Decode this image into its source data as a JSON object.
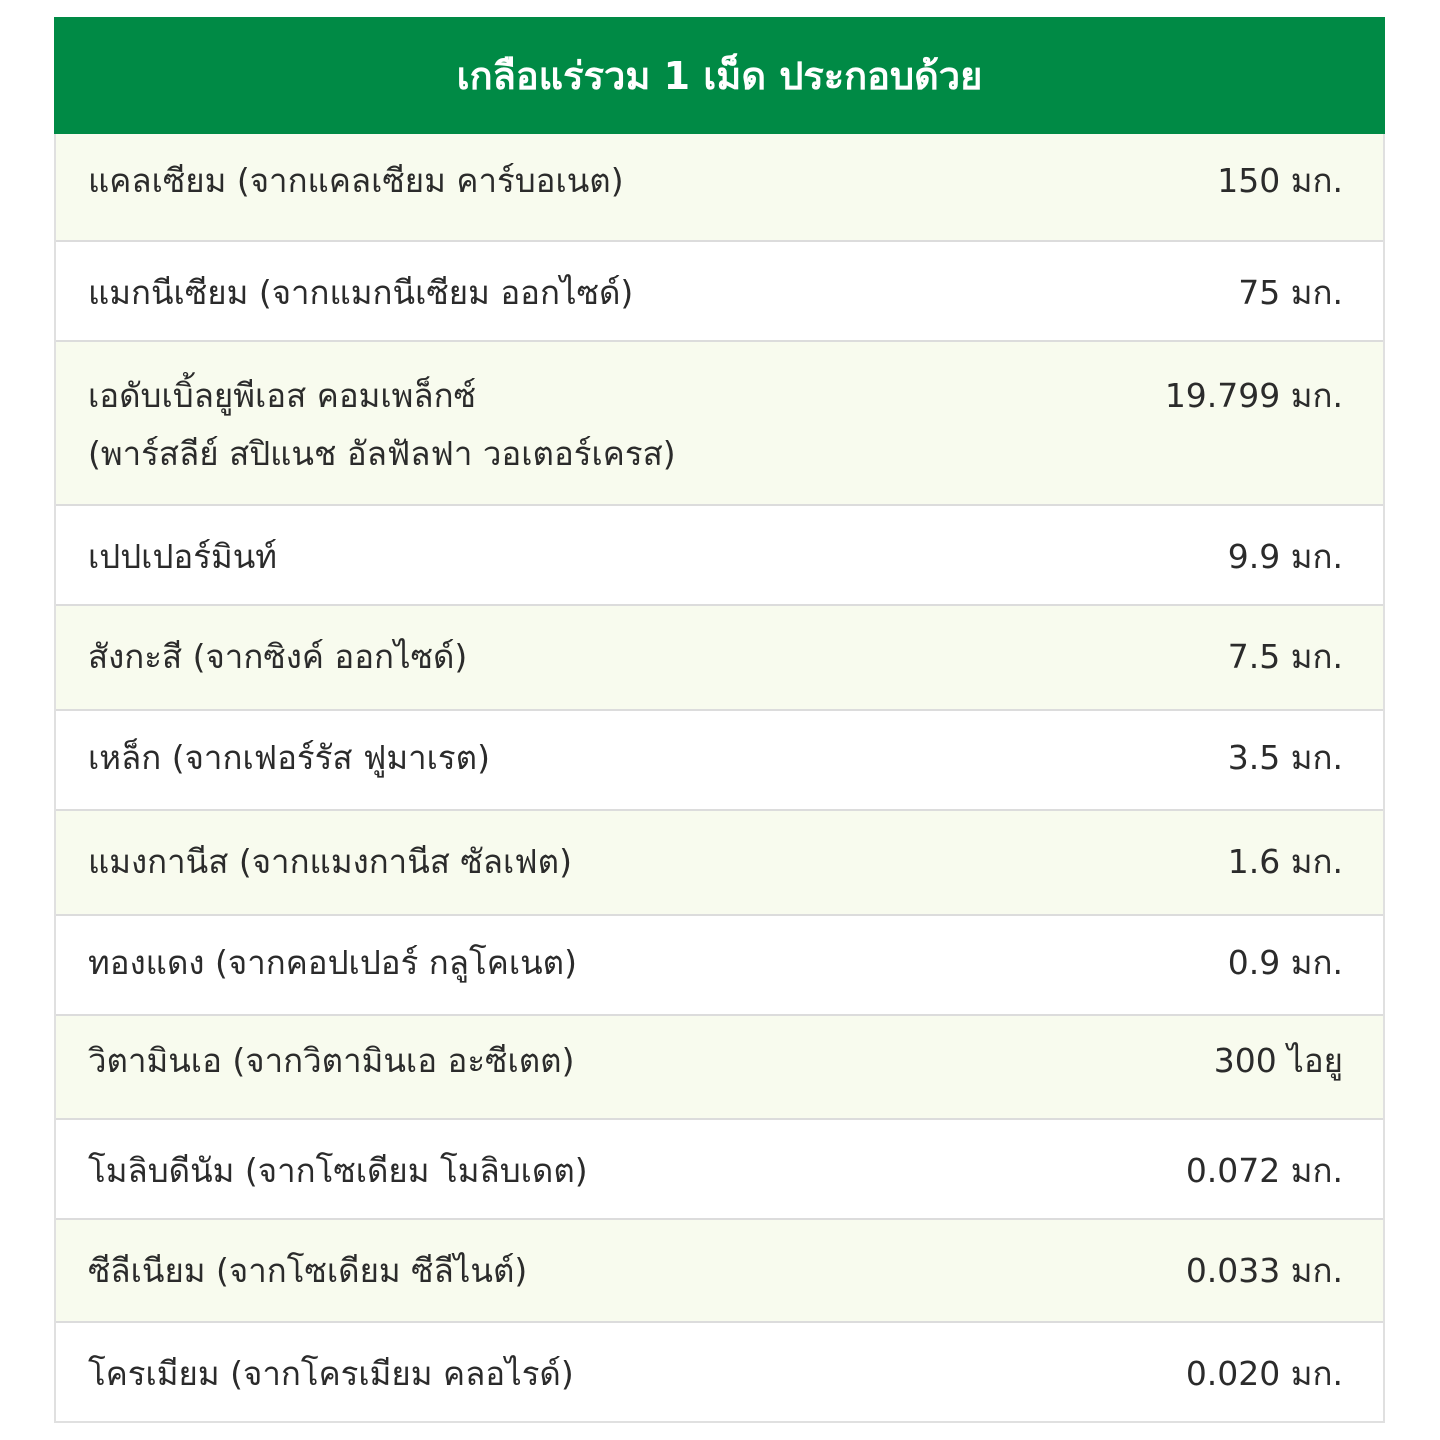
{
  "title": "เกลือแร่รวม 1 เม็ด ประกอบด้วย",
  "colors": {
    "header": "#008a45",
    "row_tint": "#f8fbee"
  },
  "rows": [
    {
      "name": "แคลเซียม (จากแคลเซียม คาร์บอเนต)",
      "amount": "150 มก."
    },
    {
      "name": "แมกนีเซียม (จากแมกนีเซียม ออกไซด์)",
      "amount": "75 มก."
    },
    {
      "name": "เอดับเบิ้ลยูพีเอส คอมเพล็กซ์",
      "name2": "(พาร์สลีย์ สปิแนช อัลฟัลฟา วอเตอร์เครส)",
      "amount": "19.799 มก."
    },
    {
      "name": "เปปเปอร์มินท์",
      "amount": "9.9 มก."
    },
    {
      "name": "สังกะสี (จากซิงค์ ออกไซด์)",
      "amount": "7.5 มก."
    },
    {
      "name": "เหล็ก (จากเฟอร์รัส ฟูมาเรต)",
      "amount": "3.5 มก."
    },
    {
      "name": "แมงกานีส (จากแมงกานีส ซัลเฟต)",
      "amount": "1.6 มก."
    },
    {
      "name": "ทองแดง (จากคอปเปอร์ กลูโคเนต)",
      "amount": "0.9 มก."
    },
    {
      "name": "วิตามินเอ (จากวิตามินเอ อะซีเตต)",
      "amount": "300 ไอยู"
    },
    {
      "name": "โมลิบดีนัม (จากโซเดียม โมลิบเดต)",
      "amount": "0.072 มก."
    },
    {
      "name": "ซีลีเนียม (จากโซเดียม ซีลีไนต์)",
      "amount": "0.033 มก."
    },
    {
      "name": "โครเมียม (จากโครเมียม คลอไรด์)",
      "amount": "0.020 มก."
    }
  ]
}
